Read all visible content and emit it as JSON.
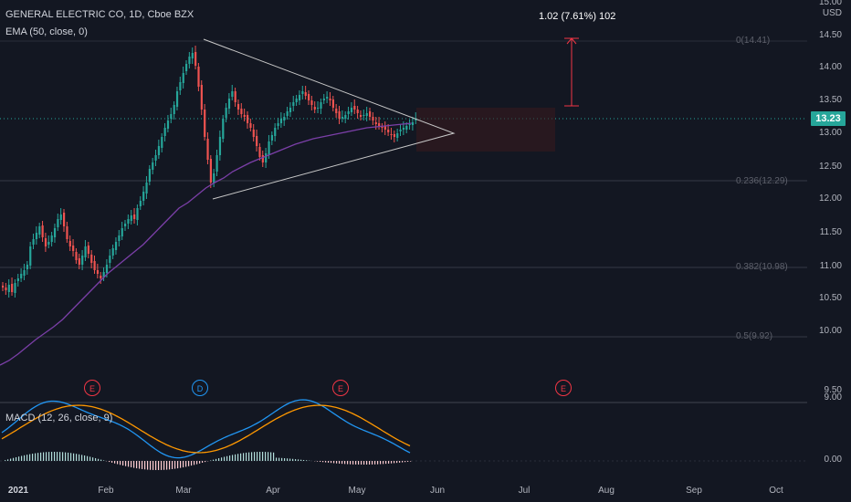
{
  "header": {
    "symbol_line": "GENERAL ELECTRIC CO, 1D, Cboe BZX",
    "ema_line": "EMA (50, close, 0)",
    "macd_line": "MACD (12, 26, close, 9)"
  },
  "price_axis": {
    "currency": "USD",
    "ticks": [
      "15.00",
      "14.50",
      "14.00",
      "13.50",
      "13.00",
      "12.50",
      "12.00",
      "11.50",
      "11.00",
      "10.50",
      "10.00",
      "9.50",
      "9.00"
    ],
    "macd_tick": "0.00",
    "last_price": "13.23"
  },
  "time_axis": {
    "labels": [
      "2021",
      "Feb",
      "Mar",
      "Apr",
      "May",
      "Jun",
      "Jul",
      "Aug",
      "Sep",
      "Oct"
    ]
  },
  "fib_levels": [
    {
      "label": "0(14.41)"
    },
    {
      "label": "0.236(12.29)"
    },
    {
      "label": "0.382(10.98)"
    },
    {
      "label": "0.5(9.92)"
    }
  ],
  "measure_label": "1.02 (7.61%) 102",
  "events": [
    {
      "label": "E",
      "kind": "earnings"
    },
    {
      "label": "D",
      "kind": "dividend"
    },
    {
      "label": "E",
      "kind": "earnings"
    },
    {
      "label": "E",
      "kind": "earnings"
    }
  ],
  "colors": {
    "background": "#131722",
    "up": "#26a69a",
    "down": "#ef5350",
    "ema": "#7b3fa8",
    "macd": "#2196f3",
    "signal": "#ff9800",
    "last_price": "#26a69a"
  }
}
